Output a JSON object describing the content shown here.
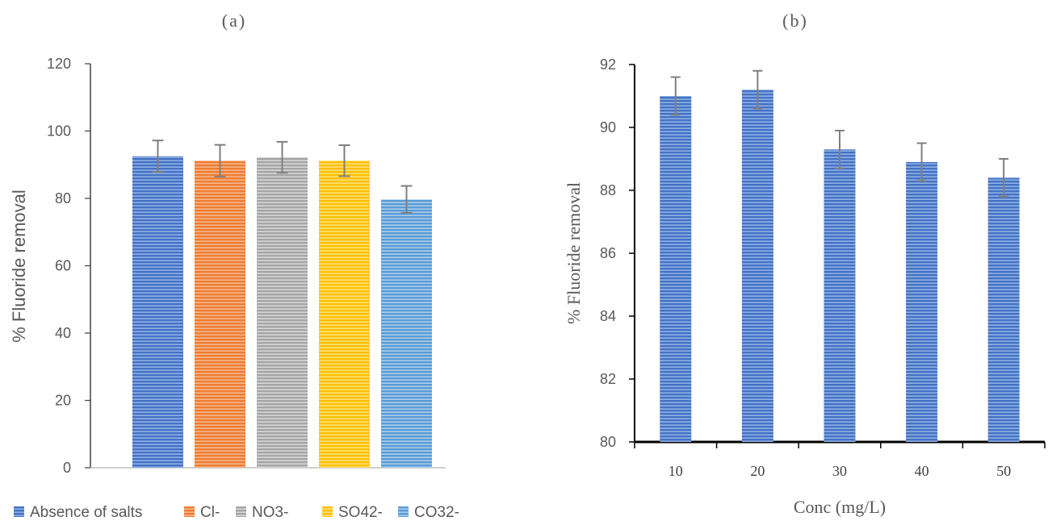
{
  "chart_data": [
    {
      "panel": "(a)",
      "type": "bar",
      "title": "",
      "xlabel": "",
      "ylabel": "% Fluoride removal",
      "ylim": [
        0,
        120
      ],
      "yticks": [
        0,
        20,
        40,
        60,
        80,
        100,
        120
      ],
      "categories": [
        "Absence of salts",
        "Cl-",
        "NO3-",
        "SO42-",
        "CO32-"
      ],
      "values": [
        92.5,
        91.2,
        92.2,
        91.2,
        79.7
      ],
      "errors": [
        4.7,
        4.7,
        4.6,
        4.6,
        4.0
      ],
      "colors": [
        "#4472C4",
        "#ED7D31",
        "#A5A5A5",
        "#FFC000",
        "#5B9BD5"
      ],
      "legend": [
        "Absence of salts",
        "Cl-",
        "NO3-",
        "SO42-",
        "CO32-"
      ],
      "legend_position": "bottom",
      "grid": false
    },
    {
      "panel": "(b)",
      "type": "bar",
      "title": "",
      "xlabel": "Conc (mg/L)",
      "ylabel": "% Fluoride removal",
      "ylim": [
        80,
        92
      ],
      "yticks": [
        80,
        82,
        84,
        86,
        88,
        90,
        92
      ],
      "categories": [
        "10",
        "20",
        "30",
        "40",
        "50"
      ],
      "values": [
        91.0,
        91.2,
        89.3,
        88.9,
        88.4
      ],
      "errors": [
        0.6,
        0.6,
        0.6,
        0.6,
        0.6
      ],
      "colors": [
        "#4472C4"
      ],
      "grid": false
    }
  ]
}
